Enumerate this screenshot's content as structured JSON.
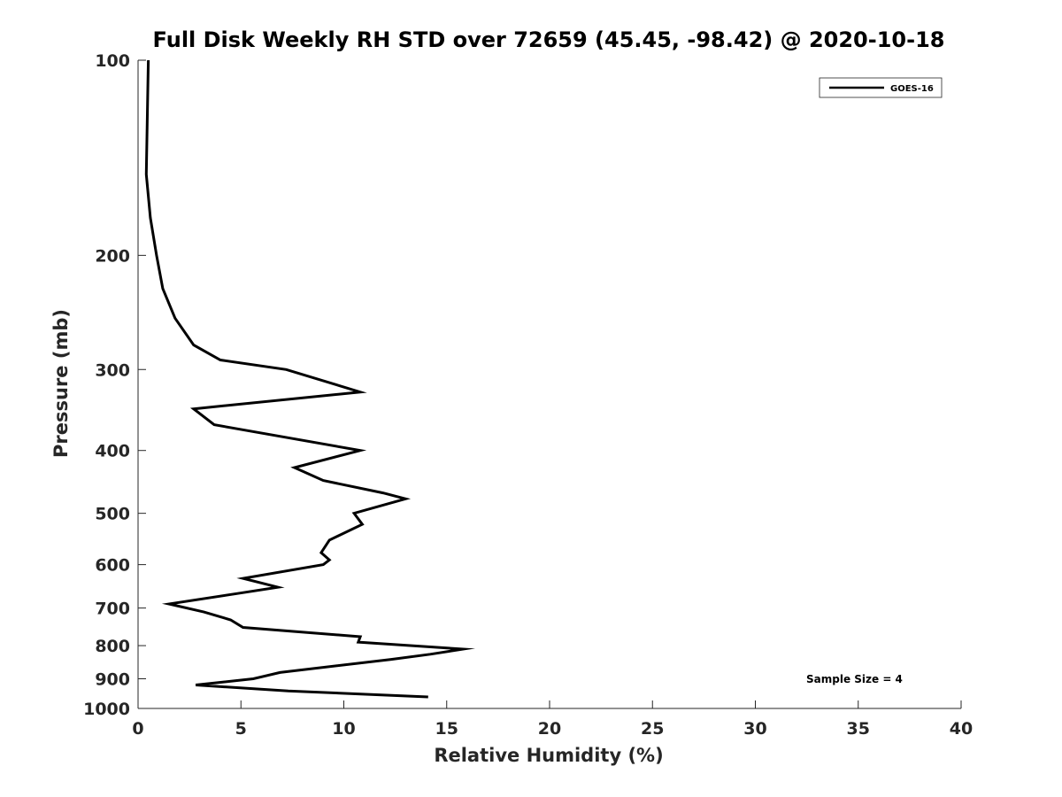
{
  "chart_data": {
    "type": "line",
    "title": "Full Disk Weekly RH STD over 72659 (45.45, -98.42) @ 2020-10-18",
    "xlabel": "Relative Humidity (%)",
    "ylabel": "Pressure (mb)",
    "xlim": [
      0,
      40
    ],
    "ylim": [
      1000,
      100
    ],
    "yscale": "log",
    "xticks": [
      0,
      5,
      10,
      15,
      20,
      25,
      30,
      35,
      40
    ],
    "yticks": [
      100,
      200,
      300,
      400,
      500,
      600,
      700,
      800,
      900,
      1000
    ],
    "xtick_labels": [
      "0",
      "5",
      "10",
      "15",
      "20",
      "25",
      "30",
      "35",
      "40"
    ],
    "ytick_labels": [
      "100",
      "200",
      "300",
      "400",
      "500",
      "600",
      "700",
      "800",
      "900",
      "1000"
    ],
    "grid": false,
    "legend_position": "top-right",
    "series": [
      {
        "name": "GOES-16",
        "color": "#000000",
        "points": [
          [
            0.5,
            100
          ],
          [
            0.4,
            150
          ],
          [
            0.6,
            175
          ],
          [
            0.9,
            200
          ],
          [
            1.2,
            225
          ],
          [
            1.8,
            250
          ],
          [
            2.7,
            275
          ],
          [
            4.0,
            290
          ],
          [
            7.2,
            300
          ],
          [
            10.8,
            325
          ],
          [
            2.7,
            345
          ],
          [
            3.7,
            365
          ],
          [
            10.8,
            400
          ],
          [
            7.6,
            425
          ],
          [
            9.0,
            445
          ],
          [
            11.9,
            465
          ],
          [
            13.0,
            475
          ],
          [
            10.5,
            500
          ],
          [
            10.9,
            520
          ],
          [
            9.3,
            550
          ],
          [
            8.9,
            575
          ],
          [
            9.3,
            590
          ],
          [
            9.0,
            600
          ],
          [
            5.1,
            630
          ],
          [
            6.8,
            650
          ],
          [
            4.8,
            665
          ],
          [
            1.5,
            690
          ],
          [
            3.2,
            710
          ],
          [
            4.5,
            730
          ],
          [
            5.1,
            750
          ],
          [
            10.8,
            775
          ],
          [
            10.7,
            790
          ],
          [
            15.8,
            810
          ],
          [
            14.2,
            825
          ],
          [
            12.3,
            840
          ],
          [
            6.9,
            880
          ],
          [
            5.6,
            900
          ],
          [
            2.8,
            920
          ],
          [
            7.3,
            940
          ],
          [
            14.1,
            960
          ]
        ]
      }
    ],
    "annotation": "Sample Size = 4"
  }
}
